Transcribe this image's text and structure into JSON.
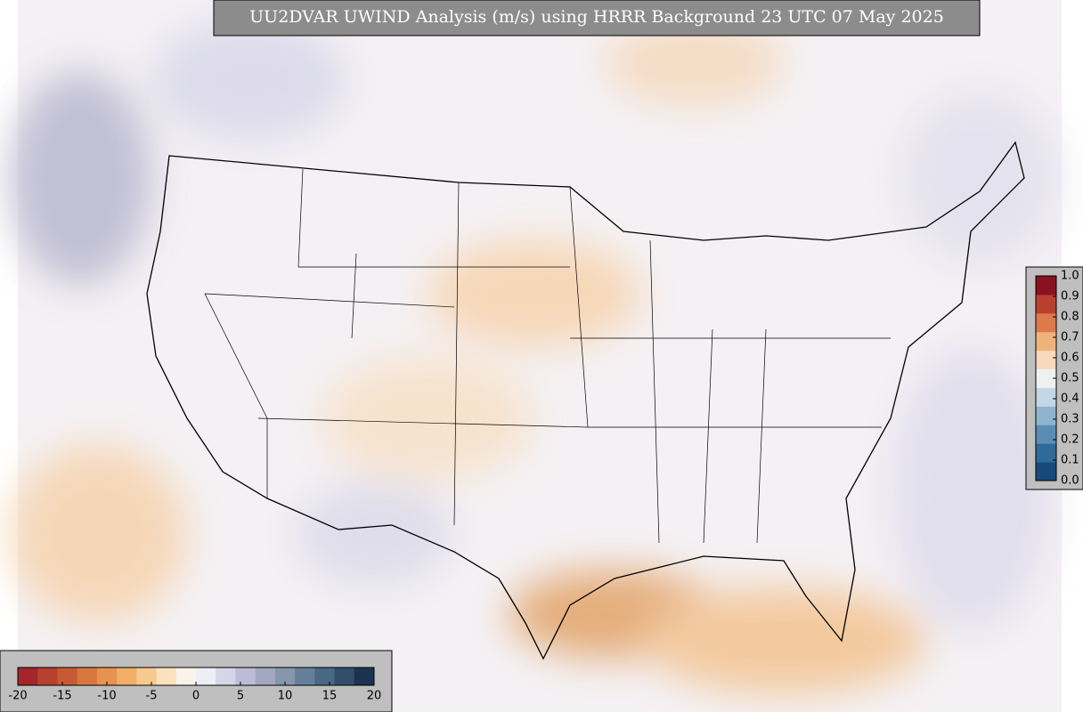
{
  "map": {
    "title": "UU2DVAR UWIND Analysis (m/s) using HRRR Background 23 UTC 07 May 2025",
    "bottom_colorbar": {
      "range": [
        -20,
        20
      ],
      "ticks": [
        -20,
        -15,
        -10,
        -5,
        0,
        5,
        10,
        15,
        20
      ],
      "colors": [
        "#a3262a",
        "#b8402f",
        "#c75a35",
        "#d8763f",
        "#e6934f",
        "#f0ae67",
        "#f7c98c",
        "#fbe2bd",
        "#fbf3ea",
        "#eeeef6",
        "#d6d5e8",
        "#bdbcd8",
        "#a3a8c2",
        "#8596ad",
        "#647f9a",
        "#486884",
        "#304d6a",
        "#1c3350"
      ]
    },
    "right_colorbar": {
      "range": [
        0,
        1
      ],
      "ticks": [
        {
          "value": 0,
          "label": "0.0"
        },
        0.1,
        0.2,
        0.3,
        0.4,
        0.5,
        0.6,
        0.7,
        0.8,
        0.9,
        {
          "value": 1,
          "label": "1.0"
        }
      ],
      "colors": [
        "#174a7c",
        "#2f6a99",
        "#5a8db5",
        "#8fb4cf",
        "#c3d8e6",
        "#eef0f2",
        "#f8d9bc",
        "#f0b27c",
        "#dd7a4b",
        "#b9402f",
        "#8a1120"
      ]
    }
  }
}
